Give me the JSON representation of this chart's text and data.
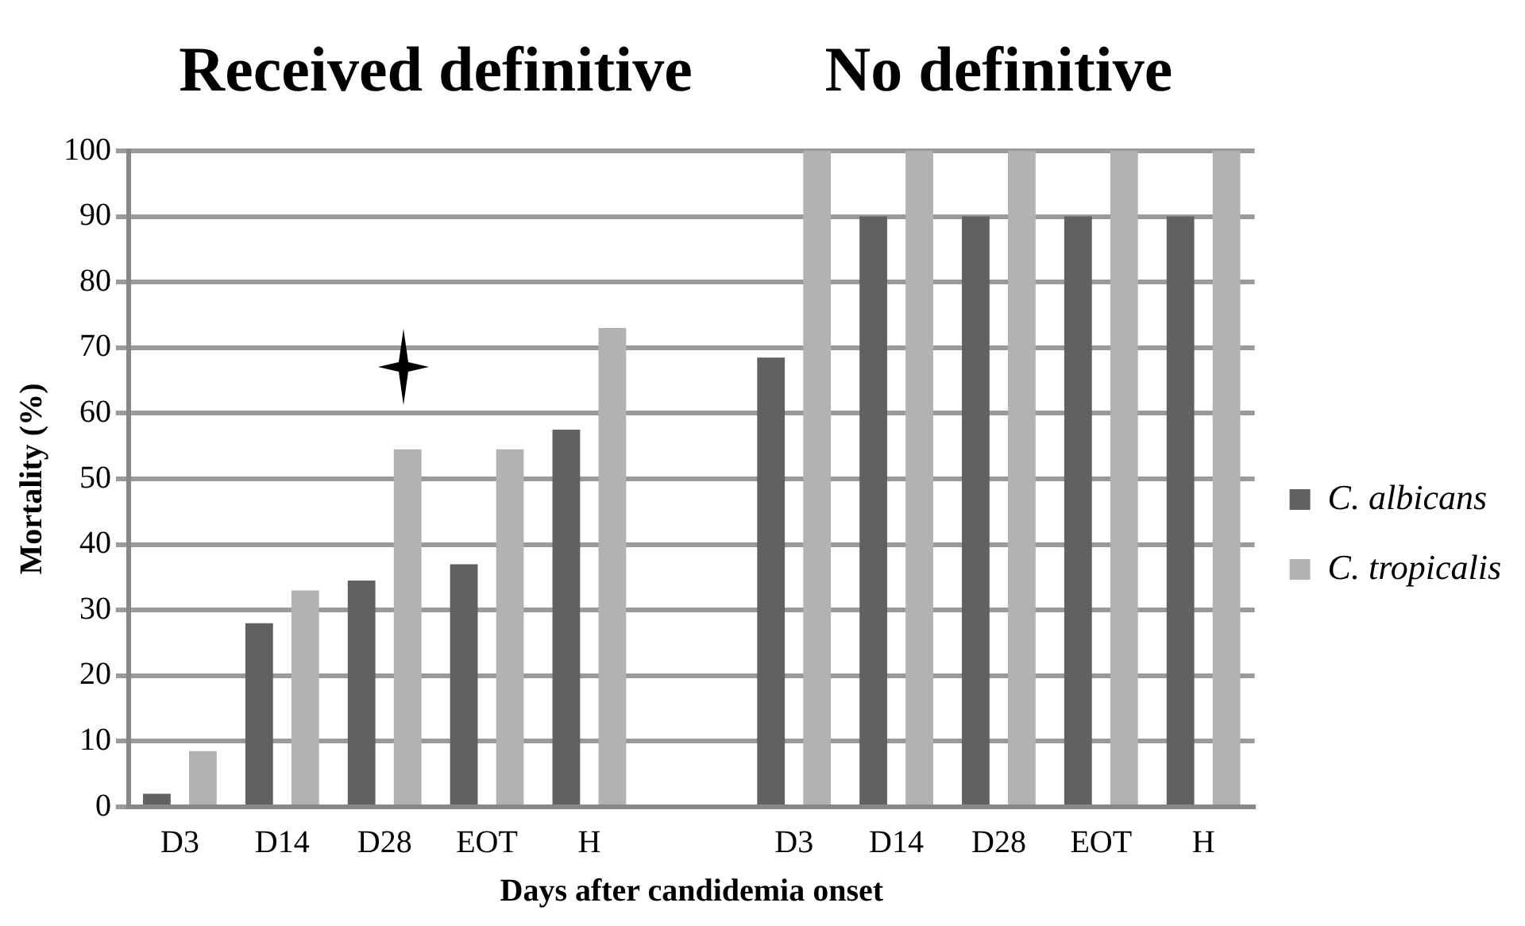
{
  "chart_data": {
    "type": "bar",
    "annotations": [
      "Received definitive",
      "No definitive"
    ],
    "xlabel": "Days after candidemia onset",
    "ylabel": "Mortality (%)",
    "categories": [
      "D3",
      "D14",
      "D28",
      "EOT",
      "H",
      null,
      "D3",
      "D14",
      "D28",
      "EOT",
      "H"
    ],
    "series": [
      {
        "name": "C. albicans",
        "color": "#616161",
        "values": [
          2,
          28,
          34.5,
          37,
          57.5,
          null,
          68.5,
          90,
          90,
          90,
          90
        ]
      },
      {
        "name": "C. tropicalis",
        "color": "#b2b2b2",
        "values": [
          8.5,
          33,
          54.5,
          54.5,
          73,
          null,
          100,
          100,
          100,
          100,
          100
        ]
      }
    ],
    "ylim": [
      0,
      100
    ],
    "yticks": [
      0,
      10,
      20,
      30,
      40,
      50,
      60,
      70,
      80,
      90,
      100
    ],
    "grid": "y",
    "legend": "right"
  }
}
